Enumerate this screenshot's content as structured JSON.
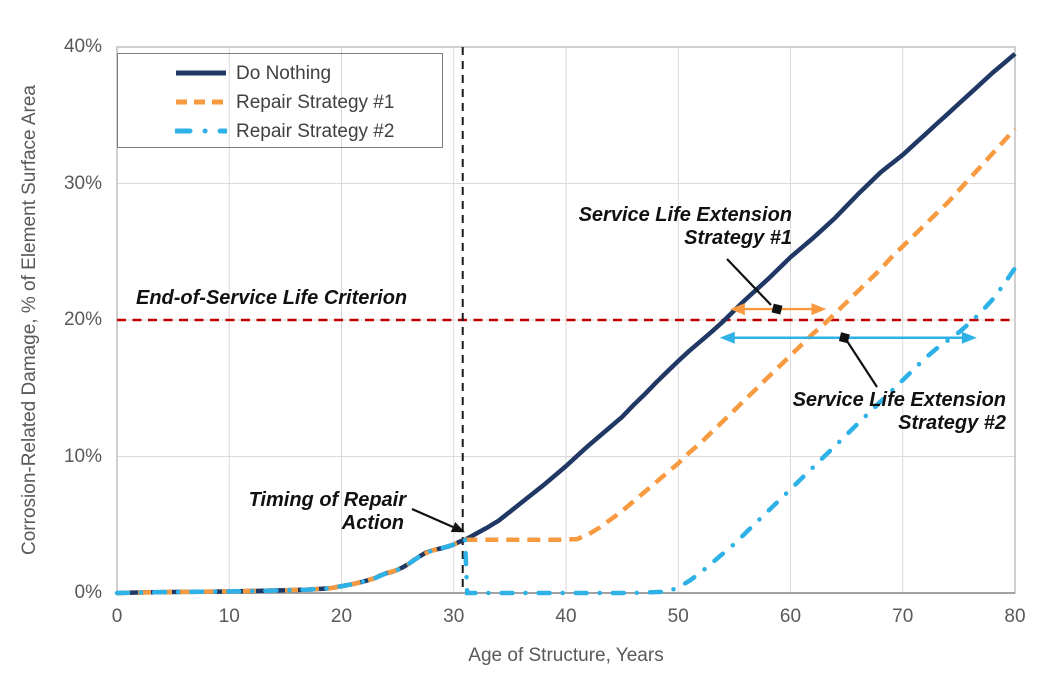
{
  "chart_data": {
    "type": "line",
    "xlabel": "Age of Structure, Years",
    "ylabel": "Corrosion-Related Damage, % of Element Surface Area",
    "xlim": [
      0,
      80
    ],
    "ylim": [
      0,
      40
    ],
    "x_ticks": [
      0,
      10,
      20,
      30,
      40,
      50,
      60,
      70,
      80
    ],
    "y_ticks": [
      0,
      10,
      20,
      30,
      40
    ],
    "y_tick_labels": [
      "0%",
      "10%",
      "20%",
      "30%",
      "40%"
    ],
    "grid": true,
    "legend_position": "top-left",
    "series": [
      {
        "name": "Do Nothing",
        "color": "#1f3864",
        "style": "solid",
        "points": [
          [
            0,
            0
          ],
          [
            3,
            0.05
          ],
          [
            6,
            0.08
          ],
          [
            9,
            0.1
          ],
          [
            12,
            0.15
          ],
          [
            15,
            0.2
          ],
          [
            17,
            0.25
          ],
          [
            19,
            0.35
          ],
          [
            20,
            0.5
          ],
          [
            21,
            0.65
          ],
          [
            22,
            0.85
          ],
          [
            23,
            1.1
          ],
          [
            23.5,
            1.3
          ],
          [
            24,
            1.45
          ],
          [
            24.5,
            1.55
          ],
          [
            25,
            1.7
          ],
          [
            25.5,
            1.9
          ],
          [
            26,
            2.15
          ],
          [
            26.5,
            2.45
          ],
          [
            27,
            2.7
          ],
          [
            27.5,
            2.95
          ],
          [
            28,
            3.1
          ],
          [
            28.5,
            3.2
          ],
          [
            29,
            3.3
          ],
          [
            29.5,
            3.4
          ],
          [
            30,
            3.55
          ],
          [
            30.5,
            3.75
          ],
          [
            31,
            3.9
          ],
          [
            32,
            4.35
          ],
          [
            33,
            4.8
          ],
          [
            34,
            5.3
          ],
          [
            35,
            5.95
          ],
          [
            36,
            6.6
          ],
          [
            37,
            7.25
          ],
          [
            38,
            7.9
          ],
          [
            39,
            8.6
          ],
          [
            40,
            9.3
          ],
          [
            41,
            10.05
          ],
          [
            42,
            10.8
          ],
          [
            43,
            11.5
          ],
          [
            44,
            12.2
          ],
          [
            45,
            12.9
          ],
          [
            46,
            13.75
          ],
          [
            47,
            14.55
          ],
          [
            48,
            15.4
          ],
          [
            49,
            16.2
          ],
          [
            50,
            17.0
          ],
          [
            51,
            17.75
          ],
          [
            52,
            18.45
          ],
          [
            53,
            19.15
          ],
          [
            54,
            19.9
          ],
          [
            55,
            20.7
          ],
          [
            56,
            21.5
          ],
          [
            57,
            22.25
          ],
          [
            58,
            23.0
          ],
          [
            59,
            23.8
          ],
          [
            60,
            24.6
          ],
          [
            61,
            25.3
          ],
          [
            62,
            26.0
          ],
          [
            63,
            26.75
          ],
          [
            64,
            27.5
          ],
          [
            65,
            28.35
          ],
          [
            66,
            29.2
          ],
          [
            67,
            30.0
          ],
          [
            68,
            30.8
          ],
          [
            69,
            31.45
          ],
          [
            70,
            32.1
          ],
          [
            71,
            32.85
          ],
          [
            72,
            33.6
          ],
          [
            73,
            34.35
          ],
          [
            74,
            35.1
          ],
          [
            75,
            35.85
          ],
          [
            76,
            36.6
          ],
          [
            77,
            37.35
          ],
          [
            78,
            38.1
          ],
          [
            79,
            38.8
          ],
          [
            80,
            39.5
          ]
        ]
      },
      {
        "name": "Repair Strategy #1",
        "color": "#f79a40",
        "style": "dashed",
        "points": [
          [
            0,
            0
          ],
          [
            3,
            0.05
          ],
          [
            6,
            0.08
          ],
          [
            9,
            0.1
          ],
          [
            12,
            0.15
          ],
          [
            15,
            0.2
          ],
          [
            17,
            0.25
          ],
          [
            19,
            0.35
          ],
          [
            20,
            0.5
          ],
          [
            21,
            0.65
          ],
          [
            22,
            0.85
          ],
          [
            23,
            1.1
          ],
          [
            24,
            1.45
          ],
          [
            25,
            1.7
          ],
          [
            26,
            2.15
          ],
          [
            27,
            2.7
          ],
          [
            28,
            3.1
          ],
          [
            29,
            3.3
          ],
          [
            30,
            3.55
          ],
          [
            31,
            3.9
          ],
          [
            33,
            3.9
          ],
          [
            36,
            3.9
          ],
          [
            39,
            3.9
          ],
          [
            41,
            3.95
          ],
          [
            42,
            4.3
          ],
          [
            43,
            4.8
          ],
          [
            44,
            5.4
          ],
          [
            45,
            6.0
          ],
          [
            46,
            6.7
          ],
          [
            47,
            7.4
          ],
          [
            48,
            8.1
          ],
          [
            49,
            8.8
          ],
          [
            50,
            9.5
          ],
          [
            51,
            10.3
          ],
          [
            52,
            11.0
          ],
          [
            53,
            11.8
          ],
          [
            54,
            12.6
          ],
          [
            55,
            13.4
          ],
          [
            56,
            14.2
          ],
          [
            57,
            15.0
          ],
          [
            58,
            15.8
          ],
          [
            59,
            16.6
          ],
          [
            60,
            17.4
          ],
          [
            61,
            18.2
          ],
          [
            62,
            19.0
          ],
          [
            63,
            19.7
          ],
          [
            64,
            20.5
          ],
          [
            65,
            21.3
          ],
          [
            66,
            22.1
          ],
          [
            67,
            22.9
          ],
          [
            68,
            23.7
          ],
          [
            69,
            24.6
          ],
          [
            70,
            25.4
          ],
          [
            71,
            26.2
          ],
          [
            72,
            27.0
          ],
          [
            73,
            27.8
          ],
          [
            74,
            28.6
          ],
          [
            75,
            29.5
          ],
          [
            76,
            30.4
          ],
          [
            77,
            31.3
          ],
          [
            78,
            32.2
          ],
          [
            79,
            33.1
          ],
          [
            80,
            34.0
          ]
        ]
      },
      {
        "name": "Repair Strategy #2",
        "color": "#2eb1e6",
        "style": "dashdot",
        "points": [
          [
            0,
            0
          ],
          [
            3,
            0.05
          ],
          [
            6,
            0.08
          ],
          [
            9,
            0.1
          ],
          [
            12,
            0.15
          ],
          [
            15,
            0.2
          ],
          [
            17,
            0.25
          ],
          [
            19,
            0.35
          ],
          [
            20,
            0.5
          ],
          [
            21,
            0.65
          ],
          [
            22,
            0.85
          ],
          [
            23,
            1.1
          ],
          [
            24,
            1.45
          ],
          [
            25,
            1.7
          ],
          [
            26,
            2.15
          ],
          [
            27,
            2.7
          ],
          [
            28,
            3.1
          ],
          [
            29,
            3.3
          ],
          [
            30,
            3.55
          ],
          [
            31,
            3.9
          ],
          [
            31.2,
            0
          ],
          [
            34,
            0
          ],
          [
            38,
            0
          ],
          [
            42,
            0
          ],
          [
            46,
            0
          ],
          [
            49,
            0.1
          ],
          [
            50,
            0.4
          ],
          [
            51,
            0.9
          ],
          [
            52,
            1.5
          ],
          [
            53,
            2.2
          ],
          [
            54,
            2.9
          ],
          [
            55,
            3.6
          ],
          [
            56,
            4.4
          ],
          [
            57,
            5.2
          ],
          [
            58,
            6.0
          ],
          [
            59,
            6.8
          ],
          [
            60,
            7.6
          ],
          [
            61,
            8.4
          ],
          [
            62,
            9.2
          ],
          [
            63,
            10.0
          ],
          [
            64,
            10.8
          ],
          [
            65,
            11.6
          ],
          [
            66,
            12.4
          ],
          [
            67,
            13.2
          ],
          [
            68,
            14.0
          ],
          [
            69,
            14.8
          ],
          [
            70,
            15.6
          ],
          [
            71,
            16.4
          ],
          [
            72,
            17.2
          ],
          [
            73,
            17.9
          ],
          [
            74,
            18.5
          ],
          [
            75,
            19.1
          ],
          [
            76,
            19.8
          ],
          [
            77,
            20.6
          ],
          [
            78,
            21.5
          ],
          [
            79,
            22.6
          ],
          [
            80,
            23.8
          ]
        ]
      }
    ],
    "reference_lines": [
      {
        "name": "end-of-service-criterion",
        "axis": "y",
        "value": 20,
        "color": "#c00000",
        "style": "dashed"
      },
      {
        "name": "repair-timing",
        "axis": "x",
        "value": 30.8,
        "color": "#1a1a1a",
        "style": "dashed"
      }
    ],
    "arrows": [
      {
        "name": "service-life-extension-1",
        "from_year": 54.6,
        "to_year": 63.2,
        "at_pct": 20.8,
        "color": "#f79a40"
      },
      {
        "name": "service-life-extension-2",
        "from_year": 53.7,
        "to_year": 76.6,
        "at_pct": 18.7,
        "color": "#2eb1e6"
      }
    ],
    "markers": [
      {
        "name": "sle1-marker",
        "year": 58.8,
        "pct": 20.8,
        "color": "#111111"
      },
      {
        "name": "sle2-marker",
        "year": 64.8,
        "pct": 18.7,
        "color": "#111111"
      }
    ]
  },
  "annotations": {
    "eos": {
      "text": "End-of-Service Life Criterion"
    },
    "timing": {
      "line1": "Timing of Repair",
      "line2": "Action"
    },
    "sle1": {
      "line1": "Service Life Extension",
      "line2": "Strategy #1"
    },
    "sle2": {
      "line1": "Service Life Extension",
      "line2": "Strategy #2"
    }
  },
  "colors": {
    "grid": "#d9d9d9",
    "plot_border": "#bfbfbf",
    "axis_line": "#9a9a9a",
    "tick_text": "#595959",
    "legend_text": "#404040"
  }
}
